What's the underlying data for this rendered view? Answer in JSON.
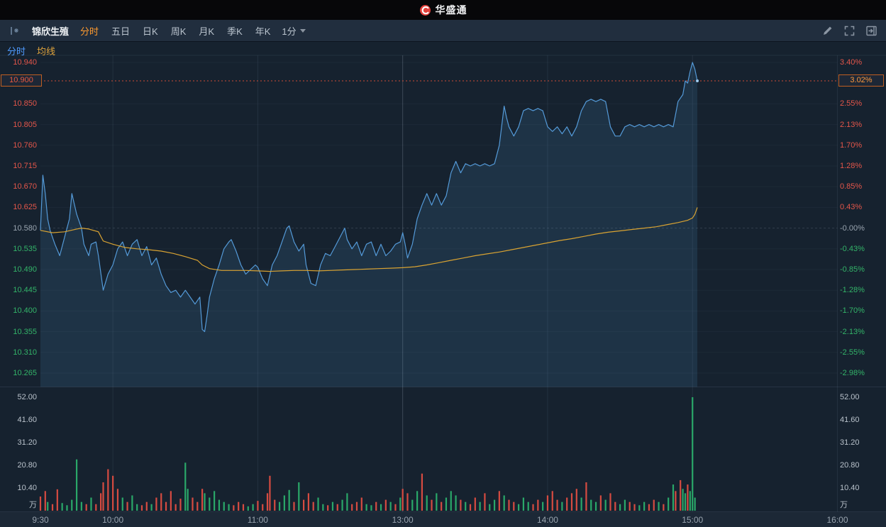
{
  "header": {
    "brand": "华盛通"
  },
  "toolbar": {
    "stock_name": "锦欣生殖",
    "periods": [
      {
        "label": "分时",
        "active": true
      },
      {
        "label": "五日",
        "active": false
      },
      {
        "label": "日K",
        "active": false
      },
      {
        "label": "周K",
        "active": false
      },
      {
        "label": "月K",
        "active": false
      },
      {
        "label": "季K",
        "active": false
      },
      {
        "label": "年K",
        "active": false
      }
    ],
    "interval": "1分"
  },
  "legend": {
    "tabs": [
      {
        "label": "分时",
        "color": "#4f9bff"
      },
      {
        "label": "均线",
        "color": "#dfa33c"
      }
    ]
  },
  "chart_data": {
    "type": "line",
    "title": "锦欣生殖 分时走势",
    "x_axis": {
      "session_minutes": 330,
      "labels": [
        {
          "label": "9:30",
          "minute": 0
        },
        {
          "label": "10:00",
          "minute": 30
        },
        {
          "label": "11:00",
          "minute": 90
        },
        {
          "label": "13:00",
          "minute": 150
        },
        {
          "label": "14:00",
          "minute": 210
        },
        {
          "label": "15:00",
          "minute": 270
        },
        {
          "label": "16:00",
          "minute": 330
        }
      ]
    },
    "price_axis": {
      "min": 10.265,
      "max": 10.94,
      "base_price": 10.58,
      "rows": [
        {
          "value": 10.94,
          "price_label": "10.940",
          "pct_label": "3.40%"
        },
        {
          "value": 10.85,
          "price_label": "10.850",
          "pct_label": "2.55%"
        },
        {
          "value": 10.805,
          "price_label": "10.805",
          "pct_label": "2.13%"
        },
        {
          "value": 10.76,
          "price_label": "10.760",
          "pct_label": "1.70%"
        },
        {
          "value": 10.715,
          "price_label": "10.715",
          "pct_label": "1.28%"
        },
        {
          "value": 10.67,
          "price_label": "10.670",
          "pct_label": "0.85%"
        },
        {
          "value": 10.625,
          "price_label": "10.625",
          "pct_label": "0.43%"
        },
        {
          "value": 10.58,
          "price_label": "10.580",
          "pct_label": "-0.00%"
        },
        {
          "value": 10.535,
          "price_label": "10.535",
          "pct_label": "-0.43%"
        },
        {
          "value": 10.49,
          "price_label": "10.490",
          "pct_label": "-0.85%"
        },
        {
          "value": 10.445,
          "price_label": "10.445",
          "pct_label": "-1.28%"
        },
        {
          "value": 10.4,
          "price_label": "10.400",
          "pct_label": "-1.70%"
        },
        {
          "value": 10.355,
          "price_label": "10.355",
          "pct_label": "-2.13%"
        },
        {
          "value": 10.31,
          "price_label": "10.310",
          "pct_label": "-2.55%"
        },
        {
          "value": 10.265,
          "price_label": "10.265",
          "pct_label": "-2.98%"
        }
      ]
    },
    "current": {
      "price": 10.9,
      "price_label": "10.900",
      "pct_label": "3.02%"
    },
    "series": [
      {
        "name": "price",
        "color": "#549ad8",
        "x": [
          0,
          1,
          2,
          3,
          4,
          6,
          8,
          10,
          12,
          13,
          15,
          17,
          18,
          20,
          21,
          23,
          24,
          26,
          28,
          30,
          32,
          34,
          36,
          38,
          40,
          42,
          44,
          46,
          48,
          50,
          52,
          54,
          56,
          58,
          60,
          62,
          64,
          66,
          67,
          68,
          69,
          70,
          72,
          74,
          76,
          78,
          79,
          81,
          83,
          85,
          87,
          89,
          90,
          92,
          94,
          96,
          98,
          100,
          102,
          103,
          105,
          107,
          109,
          110,
          112,
          114,
          116,
          118,
          120,
          122,
          124,
          126,
          127,
          129,
          131,
          133,
          135,
          137,
          139,
          141,
          143,
          145,
          147,
          149,
          150,
          151,
          152,
          154,
          156,
          158,
          160,
          162,
          164,
          166,
          168,
          170,
          172,
          174,
          176,
          178,
          180,
          182,
          184,
          186,
          188,
          190,
          192,
          193,
          194,
          196,
          198,
          200,
          202,
          204,
          206,
          208,
          210,
          212,
          214,
          216,
          218,
          220,
          222,
          224,
          226,
          228,
          230,
          232,
          234,
          236,
          238,
          240,
          242,
          244,
          246,
          248,
          250,
          252,
          254,
          256,
          258,
          260,
          262,
          264,
          266,
          267,
          268,
          269,
          270,
          271,
          272
        ],
        "values": [
          10.575,
          10.695,
          10.655,
          10.6,
          10.575,
          10.545,
          10.52,
          10.56,
          10.6,
          10.655,
          10.61,
          10.58,
          10.545,
          10.52,
          10.545,
          10.55,
          10.52,
          10.445,
          10.48,
          10.5,
          10.535,
          10.55,
          10.52,
          10.545,
          10.555,
          10.52,
          10.54,
          10.5,
          10.515,
          10.48,
          10.455,
          10.44,
          10.445,
          10.43,
          10.445,
          10.43,
          10.415,
          10.43,
          10.36,
          10.355,
          10.39,
          10.43,
          10.47,
          10.5,
          10.535,
          10.55,
          10.555,
          10.53,
          10.5,
          10.48,
          10.49,
          10.5,
          10.495,
          10.47,
          10.455,
          10.5,
          10.52,
          10.55,
          10.58,
          10.585,
          10.55,
          10.53,
          10.545,
          10.5,
          10.46,
          10.455,
          10.5,
          10.525,
          10.52,
          10.54,
          10.56,
          10.58,
          10.555,
          10.535,
          10.55,
          10.52,
          10.545,
          10.55,
          10.52,
          10.545,
          10.52,
          10.53,
          10.545,
          10.55,
          10.57,
          10.545,
          10.515,
          10.545,
          10.6,
          10.63,
          10.655,
          10.63,
          10.655,
          10.63,
          10.65,
          10.7,
          10.725,
          10.7,
          10.72,
          10.715,
          10.72,
          10.715,
          10.72,
          10.715,
          10.72,
          10.76,
          10.845,
          10.82,
          10.8,
          10.78,
          10.8,
          10.835,
          10.84,
          10.835,
          10.84,
          10.835,
          10.8,
          10.79,
          10.8,
          10.785,
          10.8,
          10.78,
          10.8,
          10.835,
          10.855,
          10.86,
          10.855,
          10.86,
          10.855,
          10.8,
          10.78,
          10.78,
          10.8,
          10.805,
          10.8,
          10.805,
          10.8,
          10.805,
          10.8,
          10.805,
          10.8,
          10.805,
          10.8,
          10.855,
          10.87,
          10.9,
          10.895,
          10.92,
          10.94,
          10.925,
          10.9
        ]
      },
      {
        "name": "average",
        "color": "#d9a332",
        "x": [
          0,
          5,
          10,
          15,
          17,
          20,
          24,
          26,
          30,
          35,
          40,
          45,
          50,
          55,
          60,
          65,
          67,
          70,
          75,
          80,
          85,
          90,
          95,
          100,
          105,
          110,
          115,
          120,
          125,
          130,
          135,
          140,
          145,
          150,
          155,
          160,
          165,
          170,
          175,
          180,
          185,
          190,
          195,
          200,
          205,
          210,
          215,
          220,
          225,
          230,
          235,
          240,
          245,
          250,
          255,
          260,
          264,
          268,
          270,
          271,
          272
        ],
        "values": [
          10.575,
          10.57,
          10.572,
          10.578,
          10.58,
          10.578,
          10.572,
          10.552,
          10.545,
          10.538,
          10.535,
          10.533,
          10.53,
          10.525,
          10.518,
          10.51,
          10.5,
          10.492,
          10.488,
          10.488,
          10.488,
          10.487,
          10.486,
          10.487,
          10.488,
          10.488,
          10.487,
          10.488,
          10.489,
          10.49,
          10.491,
          10.492,
          10.493,
          10.494,
          10.496,
          10.5,
          10.505,
          10.51,
          10.515,
          10.52,
          10.524,
          10.528,
          10.533,
          10.538,
          10.543,
          10.548,
          10.553,
          10.557,
          10.562,
          10.567,
          10.571,
          10.574,
          10.577,
          10.58,
          10.583,
          10.588,
          10.592,
          10.597,
          10.602,
          10.61,
          10.625
        ]
      }
    ],
    "volume_axis": {
      "unit": "万",
      "labels": [
        "52.00",
        "41.60",
        "31.20",
        "20.80",
        "10.40"
      ],
      "values": [
        52,
        41.6,
        31.2,
        20.8,
        10.4
      ],
      "max": 52
    },
    "volume_bars": [
      [
        0,
        6.5,
        "r"
      ],
      [
        2,
        9,
        "r"
      ],
      [
        3,
        4,
        "g"
      ],
      [
        5,
        3,
        "r"
      ],
      [
        7,
        9.8,
        "r"
      ],
      [
        9,
        3.5,
        "g"
      ],
      [
        11,
        2.5,
        "g"
      ],
      [
        13,
        5,
        "g"
      ],
      [
        15,
        23.5,
        "g"
      ],
      [
        17,
        4,
        "g"
      ],
      [
        19,
        3,
        "r"
      ],
      [
        21,
        6,
        "g"
      ],
      [
        23,
        3,
        "r"
      ],
      [
        25,
        8,
        "r"
      ],
      [
        26,
        13,
        "r"
      ],
      [
        28,
        19,
        "r"
      ],
      [
        30,
        16,
        "r"
      ],
      [
        32,
        10,
        "r"
      ],
      [
        34,
        6,
        "g"
      ],
      [
        36,
        4,
        "r"
      ],
      [
        38,
        7,
        "g"
      ],
      [
        40,
        3,
        "g"
      ],
      [
        42,
        2.5,
        "r"
      ],
      [
        44,
        4,
        "r"
      ],
      [
        46,
        3,
        "g"
      ],
      [
        48,
        6,
        "r"
      ],
      [
        50,
        8,
        "r"
      ],
      [
        52,
        4,
        "r"
      ],
      [
        54,
        9,
        "r"
      ],
      [
        56,
        3,
        "r"
      ],
      [
        58,
        5.5,
        "r"
      ],
      [
        60,
        22,
        "g"
      ],
      [
        61,
        10,
        "g"
      ],
      [
        63,
        6,
        "r"
      ],
      [
        65,
        4,
        "r"
      ],
      [
        67,
        10,
        "r"
      ],
      [
        68,
        8,
        "g"
      ],
      [
        70,
        6,
        "g"
      ],
      [
        72,
        9,
        "g"
      ],
      [
        74,
        5,
        "g"
      ],
      [
        76,
        4,
        "g"
      ],
      [
        78,
        3,
        "g"
      ],
      [
        80,
        2.5,
        "r"
      ],
      [
        82,
        4,
        "r"
      ],
      [
        84,
        3,
        "r"
      ],
      [
        86,
        2,
        "g"
      ],
      [
        88,
        3,
        "g"
      ],
      [
        90,
        4.5,
        "r"
      ],
      [
        92,
        3,
        "r"
      ],
      [
        94,
        8,
        "r"
      ],
      [
        95,
        16,
        "r"
      ],
      [
        97,
        5,
        "r"
      ],
      [
        99,
        4,
        "g"
      ],
      [
        101,
        7,
        "g"
      ],
      [
        103,
        9.5,
        "g"
      ],
      [
        105,
        4,
        "r"
      ],
      [
        107,
        13,
        "g"
      ],
      [
        109,
        5,
        "r"
      ],
      [
        111,
        8,
        "r"
      ],
      [
        113,
        4,
        "r"
      ],
      [
        115,
        6,
        "g"
      ],
      [
        117,
        3,
        "g"
      ],
      [
        119,
        2.5,
        "r"
      ],
      [
        121,
        4,
        "g"
      ],
      [
        123,
        3,
        "r"
      ],
      [
        125,
        5,
        "g"
      ],
      [
        127,
        8,
        "g"
      ],
      [
        129,
        3,
        "r"
      ],
      [
        131,
        4,
        "r"
      ],
      [
        133,
        6,
        "r"
      ],
      [
        135,
        3,
        "g"
      ],
      [
        137,
        2.5,
        "g"
      ],
      [
        139,
        4,
        "r"
      ],
      [
        141,
        3,
        "g"
      ],
      [
        143,
        5,
        "r"
      ],
      [
        145,
        4,
        "g"
      ],
      [
        147,
        3,
        "r"
      ],
      [
        149,
        6,
        "g"
      ],
      [
        150,
        10,
        "r"
      ],
      [
        152,
        8,
        "r"
      ],
      [
        154,
        5,
        "g"
      ],
      [
        156,
        9,
        "g"
      ],
      [
        158,
        17,
        "r"
      ],
      [
        160,
        7,
        "g"
      ],
      [
        162,
        5,
        "r"
      ],
      [
        164,
        8,
        "g"
      ],
      [
        166,
        4,
        "r"
      ],
      [
        168,
        6,
        "g"
      ],
      [
        170,
        9,
        "g"
      ],
      [
        172,
        7,
        "g"
      ],
      [
        174,
        5,
        "r"
      ],
      [
        176,
        4,
        "g"
      ],
      [
        178,
        3,
        "r"
      ],
      [
        180,
        6,
        "r"
      ],
      [
        182,
        4,
        "g"
      ],
      [
        184,
        8,
        "r"
      ],
      [
        186,
        3,
        "g"
      ],
      [
        188,
        5,
        "g"
      ],
      [
        190,
        9,
        "r"
      ],
      [
        192,
        7,
        "g"
      ],
      [
        194,
        5,
        "r"
      ],
      [
        196,
        4,
        "r"
      ],
      [
        198,
        3,
        "g"
      ],
      [
        200,
        6,
        "g"
      ],
      [
        202,
        4,
        "g"
      ],
      [
        204,
        3,
        "r"
      ],
      [
        206,
        5,
        "r"
      ],
      [
        208,
        4,
        "g"
      ],
      [
        210,
        7,
        "r"
      ],
      [
        212,
        9,
        "r"
      ],
      [
        214,
        5,
        "r"
      ],
      [
        216,
        4,
        "g"
      ],
      [
        218,
        6,
        "r"
      ],
      [
        220,
        8,
        "r"
      ],
      [
        222,
        10,
        "r"
      ],
      [
        224,
        6,
        "g"
      ],
      [
        226,
        13,
        "r"
      ],
      [
        228,
        5,
        "g"
      ],
      [
        230,
        4,
        "g"
      ],
      [
        232,
        7,
        "r"
      ],
      [
        234,
        5,
        "g"
      ],
      [
        236,
        8,
        "r"
      ],
      [
        238,
        4,
        "r"
      ],
      [
        240,
        3,
        "g"
      ],
      [
        242,
        5,
        "g"
      ],
      [
        244,
        4,
        "r"
      ],
      [
        246,
        3,
        "r"
      ],
      [
        248,
        2.5,
        "g"
      ],
      [
        250,
        4,
        "g"
      ],
      [
        252,
        3,
        "r"
      ],
      [
        254,
        5,
        "r"
      ],
      [
        256,
        4,
        "g"
      ],
      [
        258,
        3,
        "r"
      ],
      [
        260,
        6,
        "g"
      ],
      [
        262,
        12,
        "g"
      ],
      [
        263,
        9,
        "r"
      ],
      [
        265,
        14,
        "r"
      ],
      [
        266,
        10,
        "g"
      ],
      [
        267,
        8,
        "g"
      ],
      [
        268,
        12,
        "r"
      ],
      [
        269,
        9,
        "g"
      ],
      [
        270,
        52,
        "g"
      ],
      [
        271,
        6,
        "g"
      ]
    ],
    "colors": {
      "up": "#e4564a",
      "down": "#33b469",
      "neutral": "#9aa5b0",
      "bar_up": "#d64b41",
      "bar_down": "#2aa869",
      "line": "#549ad8",
      "fill": "rgba(84,154,216,0.14)",
      "avg": "#d9a332",
      "marker": "#cf4c35"
    }
  }
}
